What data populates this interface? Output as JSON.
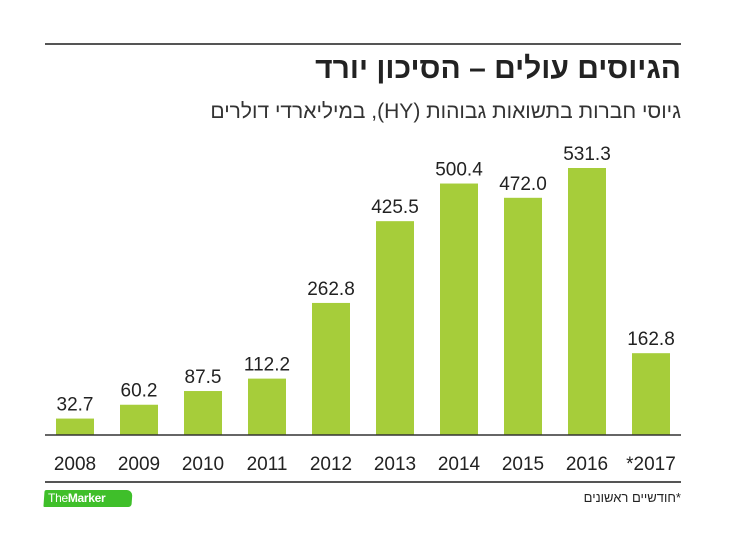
{
  "header": {
    "title": "הגיוסים עולים – הסיכון יורד",
    "subtitle": "גיוסי חברות בתשואות גבוהות (HY), במיליארדי דולרים"
  },
  "footer": {
    "footnote": "*חודשיים ראשונים",
    "logo_part1": "The",
    "logo_part2": "Marker"
  },
  "colors": {
    "bar": "#a6cd3a",
    "text": "#222222",
    "axis": "#333333",
    "logo": "#3fbf2a"
  },
  "chart_data": {
    "type": "bar",
    "title": "הגיוסים עולים – הסיכון יורד",
    "subtitle": "גיוסי חברות בתשואות גבוהות (HY), במיליארדי דולרים",
    "xlabel": "",
    "ylabel": "",
    "categories": [
      "2008",
      "2009",
      "2010",
      "2011",
      "2012",
      "2013",
      "2014",
      "2015",
      "2016",
      "*2017"
    ],
    "values": [
      32.7,
      60.2,
      87.5,
      112.2,
      262.8,
      425.5,
      500.4,
      472.0,
      531.3,
      162.8
    ],
    "value_labels": [
      "32.7",
      "60.2",
      "87.5",
      "112.2",
      "262.8",
      "425.5",
      "500.4",
      "472.0",
      "531.3",
      "162.8"
    ],
    "ylim": [
      0,
      531.3
    ],
    "grid": false,
    "legend": "none",
    "annotations": [
      "*חודשיים ראשונים"
    ]
  }
}
